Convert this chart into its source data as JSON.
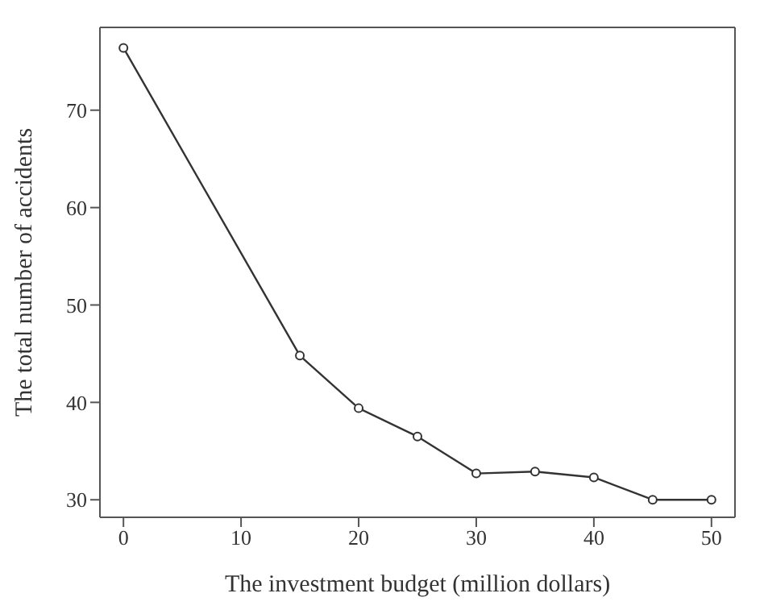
{
  "chart_data": {
    "type": "line",
    "xlabel": "The investment budget (million dollars)",
    "ylabel": "The total number of accidents",
    "x": [
      0,
      15,
      20,
      25,
      30,
      35,
      40,
      45,
      50
    ],
    "series": [
      {
        "color": "#333333",
        "values": [
          76.4,
          44.8,
          39.4,
          36.5,
          32.7,
          32.9,
          32.3,
          30,
          30
        ]
      }
    ],
    "xlim": [
      -2,
      52
    ],
    "xticks": [
      0,
      10,
      20,
      30,
      40,
      50
    ],
    "ylim": [
      28.2,
      78.5
    ],
    "yticks": [
      30,
      40,
      50,
      60,
      70
    ],
    "grid": false,
    "legend": false,
    "marker": "circle",
    "line_style": "solid"
  }
}
